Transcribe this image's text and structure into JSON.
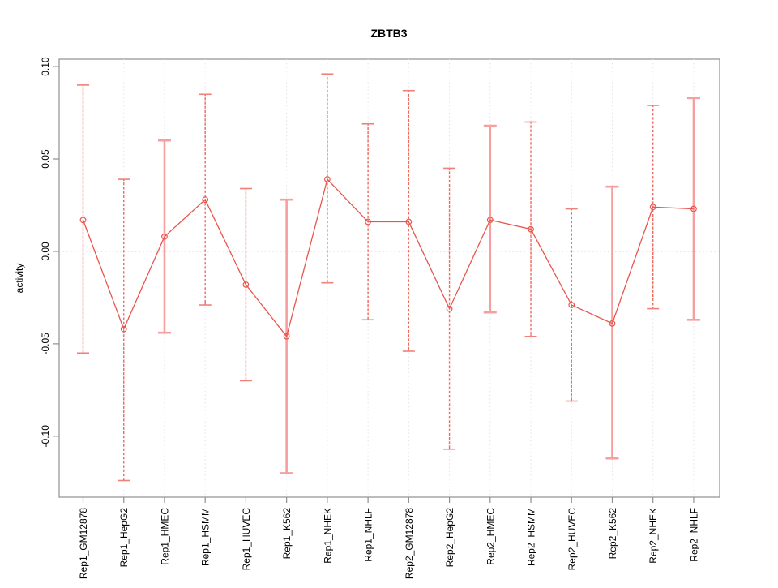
{
  "chart_data": {
    "type": "line",
    "title": "ZBTB3",
    "xlabel": "",
    "ylabel": "activity",
    "legend": "none",
    "grid": "vertical-dotted-per-category",
    "zero_line_dotted": true,
    "marker": "open-circle",
    "categories": [
      "Rep1_GM12878",
      "Rep1_HepG2",
      "Rep1_HMEC",
      "Rep1_HSMM",
      "Rep1_HUVEC",
      "Rep1_K562",
      "Rep1_NHEK",
      "Rep1_NHLF",
      "Rep2_GM12878",
      "Rep2_HepG2",
      "Rep2_HMEC",
      "Rep2_HSMM",
      "Rep2_HUVEC",
      "Rep2_K562",
      "Rep2_NHEK",
      "Rep2_NHLF"
    ],
    "series": [
      {
        "name": "activity",
        "values": [
          0.017,
          -0.042,
          0.008,
          0.028,
          -0.018,
          -0.046,
          0.039,
          0.016,
          0.016,
          -0.031,
          0.017,
          0.012,
          -0.029,
          -0.039,
          0.024,
          0.023
        ],
        "error_low": [
          -0.055,
          -0.124,
          -0.044,
          -0.029,
          -0.07,
          -0.12,
          -0.017,
          -0.037,
          -0.054,
          -0.107,
          -0.033,
          -0.046,
          -0.081,
          -0.112,
          -0.031,
          -0.037
        ],
        "error_high": [
          0.09,
          0.039,
          0.06,
          0.085,
          0.034,
          0.028,
          0.096,
          0.069,
          0.087,
          0.045,
          0.068,
          0.07,
          0.023,
          0.035,
          0.079,
          0.083
        ]
      }
    ],
    "y_ticks": {
      "values": [
        0.1,
        0.05,
        0.0,
        -0.05,
        -0.1
      ],
      "labels": [
        "0.10",
        "0.05",
        "0.00",
        "-0.05",
        "-0.10"
      ]
    },
    "ylim": [
      -0.133,
      0.104
    ],
    "thick_bar_indices": [
      2,
      5,
      10,
      13,
      15
    ],
    "colors": {
      "series_line": "#e8554e",
      "marker": "#e8554e",
      "bar_thin": "#ed6a5e",
      "bar_thin_cap": "#f0807a",
      "bar_thick": "#f79f9f",
      "gridline": "#e2e2e2",
      "zero_line": "#cccccc",
      "frame": "#8f8f8f",
      "tick": "#8f8f8f",
      "text": "#000000"
    }
  }
}
